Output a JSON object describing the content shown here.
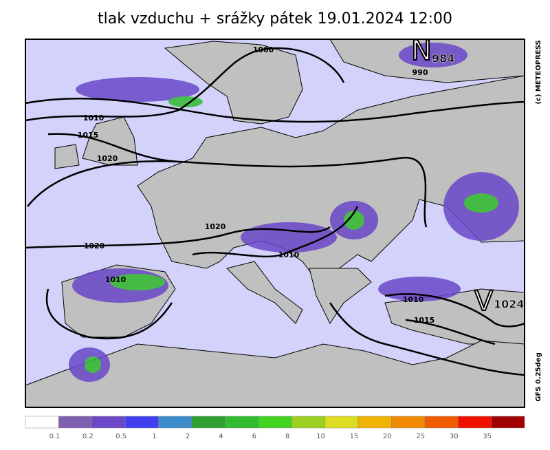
{
  "header": {
    "title": "tlak vzduchu + srážky   pátek 19.01.2024 12:00"
  },
  "map": {
    "copyright": "(c)  METEOPRESS",
    "model": "GFS  0.25deg",
    "isobar_labels": [
      "1000",
      "990",
      "1010",
      "1015",
      "1020",
      "1020",
      "1020",
      "1010",
      "1010",
      "1010",
      "1015"
    ],
    "centers": [
      {
        "letter": "N",
        "value": "984"
      },
      {
        "letter": "V",
        "value": "1024"
      }
    ]
  },
  "legend": {
    "colors": [
      "#ffffff",
      "#7f5fb0",
      "#6a48c8",
      "#4040f0",
      "#3c8ccc",
      "#2f9f2f",
      "#30bb30",
      "#40d420",
      "#9cd020",
      "#dcdc20",
      "#f0b400",
      "#f08a00",
      "#f05a00",
      "#f01000",
      "#a00000"
    ],
    "labels": [
      "0.1",
      "0.2",
      "0.5",
      "1",
      "2",
      "4",
      "6",
      "8",
      "10",
      "15",
      "20",
      "25",
      "30",
      "35"
    ]
  }
}
